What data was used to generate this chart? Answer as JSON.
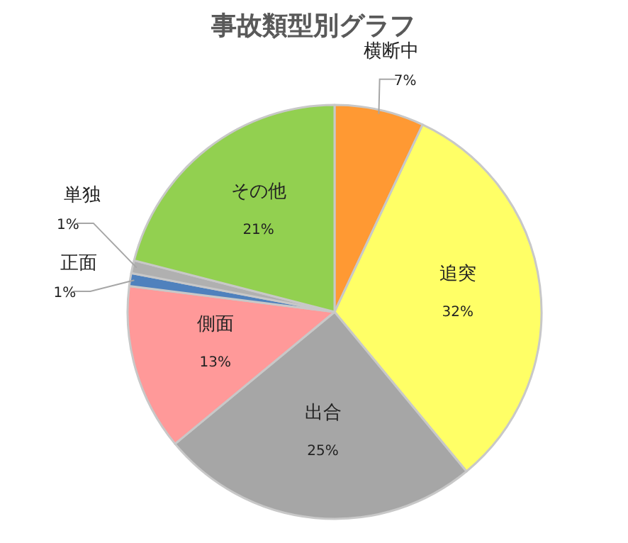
{
  "chart_data": {
    "type": "pie",
    "title": "事故類型別グラフ",
    "categories": [
      "横断中",
      "追突",
      "出合",
      "側面",
      "正面",
      "単独",
      "その他"
    ],
    "values": [
      7,
      32,
      25,
      13,
      1,
      1,
      21
    ],
    "colors": [
      "#ff9933",
      "#ffff66",
      "#a6a6a6",
      "#ff9999",
      "#4f81bd",
      "#b0b0b0",
      "#92d050"
    ],
    "value_labels": [
      "7%",
      "32%",
      "25%",
      "13%",
      "1%",
      "1%",
      "21%"
    ]
  }
}
